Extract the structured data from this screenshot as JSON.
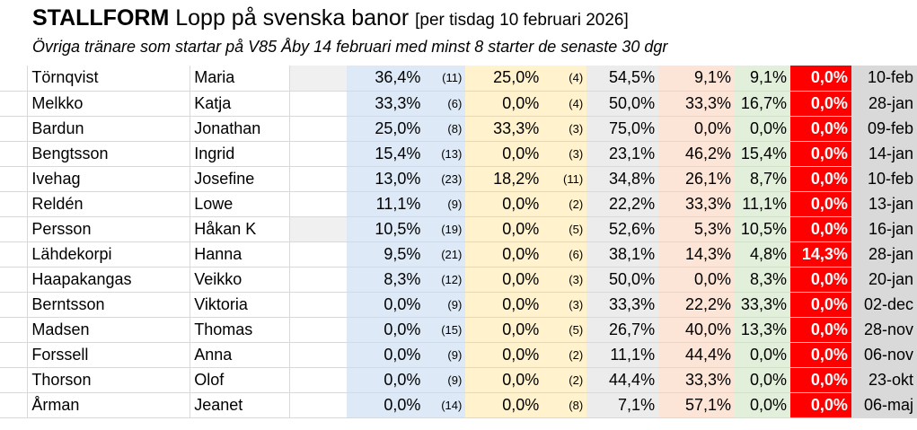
{
  "header": {
    "title_bold": "STALLFORM",
    "title_rest": "Lopp på svenska banor",
    "title_bracket": "[per tisdag 10 februari 2026]",
    "subtitle": "Övriga tränare som startar på V85 Åby 14 februari med minst 8 starter de senaste 30 dgr"
  },
  "colors": {
    "blue": "#dde9f6",
    "yellow": "#fff2cc",
    "gray": "#ececec",
    "salmon": "#fce4d6",
    "green": "#e2efda",
    "red": "#ff0000",
    "date": "#d9d9d9"
  },
  "rows": [
    {
      "last": "Törnqvist",
      "first": "Maria",
      "shaded": true,
      "win": "36,4%",
      "wn": "(11)",
      "p2": "25,0%",
      "p2n": "(4)",
      "a": "54,5%",
      "b": "9,1%",
      "c": "9,1%",
      "d": "0,0%",
      "date": "10-feb"
    },
    {
      "last": "Melkko",
      "first": "Katja",
      "shaded": false,
      "win": "33,3%",
      "wn": "(6)",
      "p2": "0,0%",
      "p2n": "(4)",
      "a": "50,0%",
      "b": "33,3%",
      "c": "16,7%",
      "d": "0,0%",
      "date": "28-jan"
    },
    {
      "last": "Bardun",
      "first": "Jonathan",
      "shaded": false,
      "win": "25,0%",
      "wn": "(8)",
      "p2": "33,3%",
      "p2n": "(3)",
      "a": "75,0%",
      "b": "0,0%",
      "c": "0,0%",
      "d": "0,0%",
      "date": "09-feb"
    },
    {
      "last": "Bengtsson",
      "first": "Ingrid",
      "shaded": false,
      "win": "15,4%",
      "wn": "(13)",
      "p2": "0,0%",
      "p2n": "(3)",
      "a": "23,1%",
      "b": "46,2%",
      "c": "15,4%",
      "d": "0,0%",
      "date": "14-jan"
    },
    {
      "last": "Ivehag",
      "first": "Josefine",
      "shaded": false,
      "win": "13,0%",
      "wn": "(23)",
      "p2": "18,2%",
      "p2n": "(11)",
      "a": "34,8%",
      "b": "26,1%",
      "c": "8,7%",
      "d": "0,0%",
      "date": "10-feb"
    },
    {
      "last": "Reldén",
      "first": "Lowe",
      "shaded": false,
      "win": "11,1%",
      "wn": "(9)",
      "p2": "0,0%",
      "p2n": "(2)",
      "a": "22,2%",
      "b": "33,3%",
      "c": "11,1%",
      "d": "0,0%",
      "date": "13-jan"
    },
    {
      "last": "Persson",
      "first": "Håkan K",
      "shaded": true,
      "win": "10,5%",
      "wn": "(19)",
      "p2": "0,0%",
      "p2n": "(5)",
      "a": "52,6%",
      "b": "5,3%",
      "c": "10,5%",
      "d": "0,0%",
      "date": "16-jan"
    },
    {
      "last": "Lähdekorpi",
      "first": "Hanna",
      "shaded": false,
      "win": "9,5%",
      "wn": "(21)",
      "p2": "0,0%",
      "p2n": "(6)",
      "a": "38,1%",
      "b": "14,3%",
      "c": "4,8%",
      "d": "14,3%",
      "date": "28-jan"
    },
    {
      "last": "Haapakangas",
      "first": "Veikko",
      "shaded": false,
      "win": "8,3%",
      "wn": "(12)",
      "p2": "0,0%",
      "p2n": "(3)",
      "a": "50,0%",
      "b": "0,0%",
      "c": "8,3%",
      "d": "0,0%",
      "date": "20-jan"
    },
    {
      "last": "Berntsson",
      "first": "Viktoria",
      "shaded": false,
      "win": "0,0%",
      "wn": "(9)",
      "p2": "0,0%",
      "p2n": "(3)",
      "a": "33,3%",
      "b": "22,2%",
      "c": "33,3%",
      "d": "0,0%",
      "date": "02-dec"
    },
    {
      "last": "Madsen",
      "first": "Thomas",
      "shaded": false,
      "win": "0,0%",
      "wn": "(15)",
      "p2": "0,0%",
      "p2n": "(5)",
      "a": "26,7%",
      "b": "40,0%",
      "c": "13,3%",
      "d": "0,0%",
      "date": "28-nov"
    },
    {
      "last": "Forssell",
      "first": "Anna",
      "shaded": false,
      "win": "0,0%",
      "wn": "(9)",
      "p2": "0,0%",
      "p2n": "(2)",
      "a": "11,1%",
      "b": "44,4%",
      "c": "0,0%",
      "d": "0,0%",
      "date": "06-nov"
    },
    {
      "last": "Thorson",
      "first": "Olof",
      "shaded": false,
      "win": "0,0%",
      "wn": "(9)",
      "p2": "0,0%",
      "p2n": "(2)",
      "a": "44,4%",
      "b": "33,3%",
      "c": "0,0%",
      "d": "0,0%",
      "date": "23-okt"
    },
    {
      "last": "Årman",
      "first": "Jeanet",
      "shaded": false,
      "win": "0,0%",
      "wn": "(14)",
      "p2": "0,0%",
      "p2n": "(8)",
      "a": "7,1%",
      "b": "57,1%",
      "c": "0,0%",
      "d": "0,0%",
      "date": "06-maj"
    }
  ]
}
